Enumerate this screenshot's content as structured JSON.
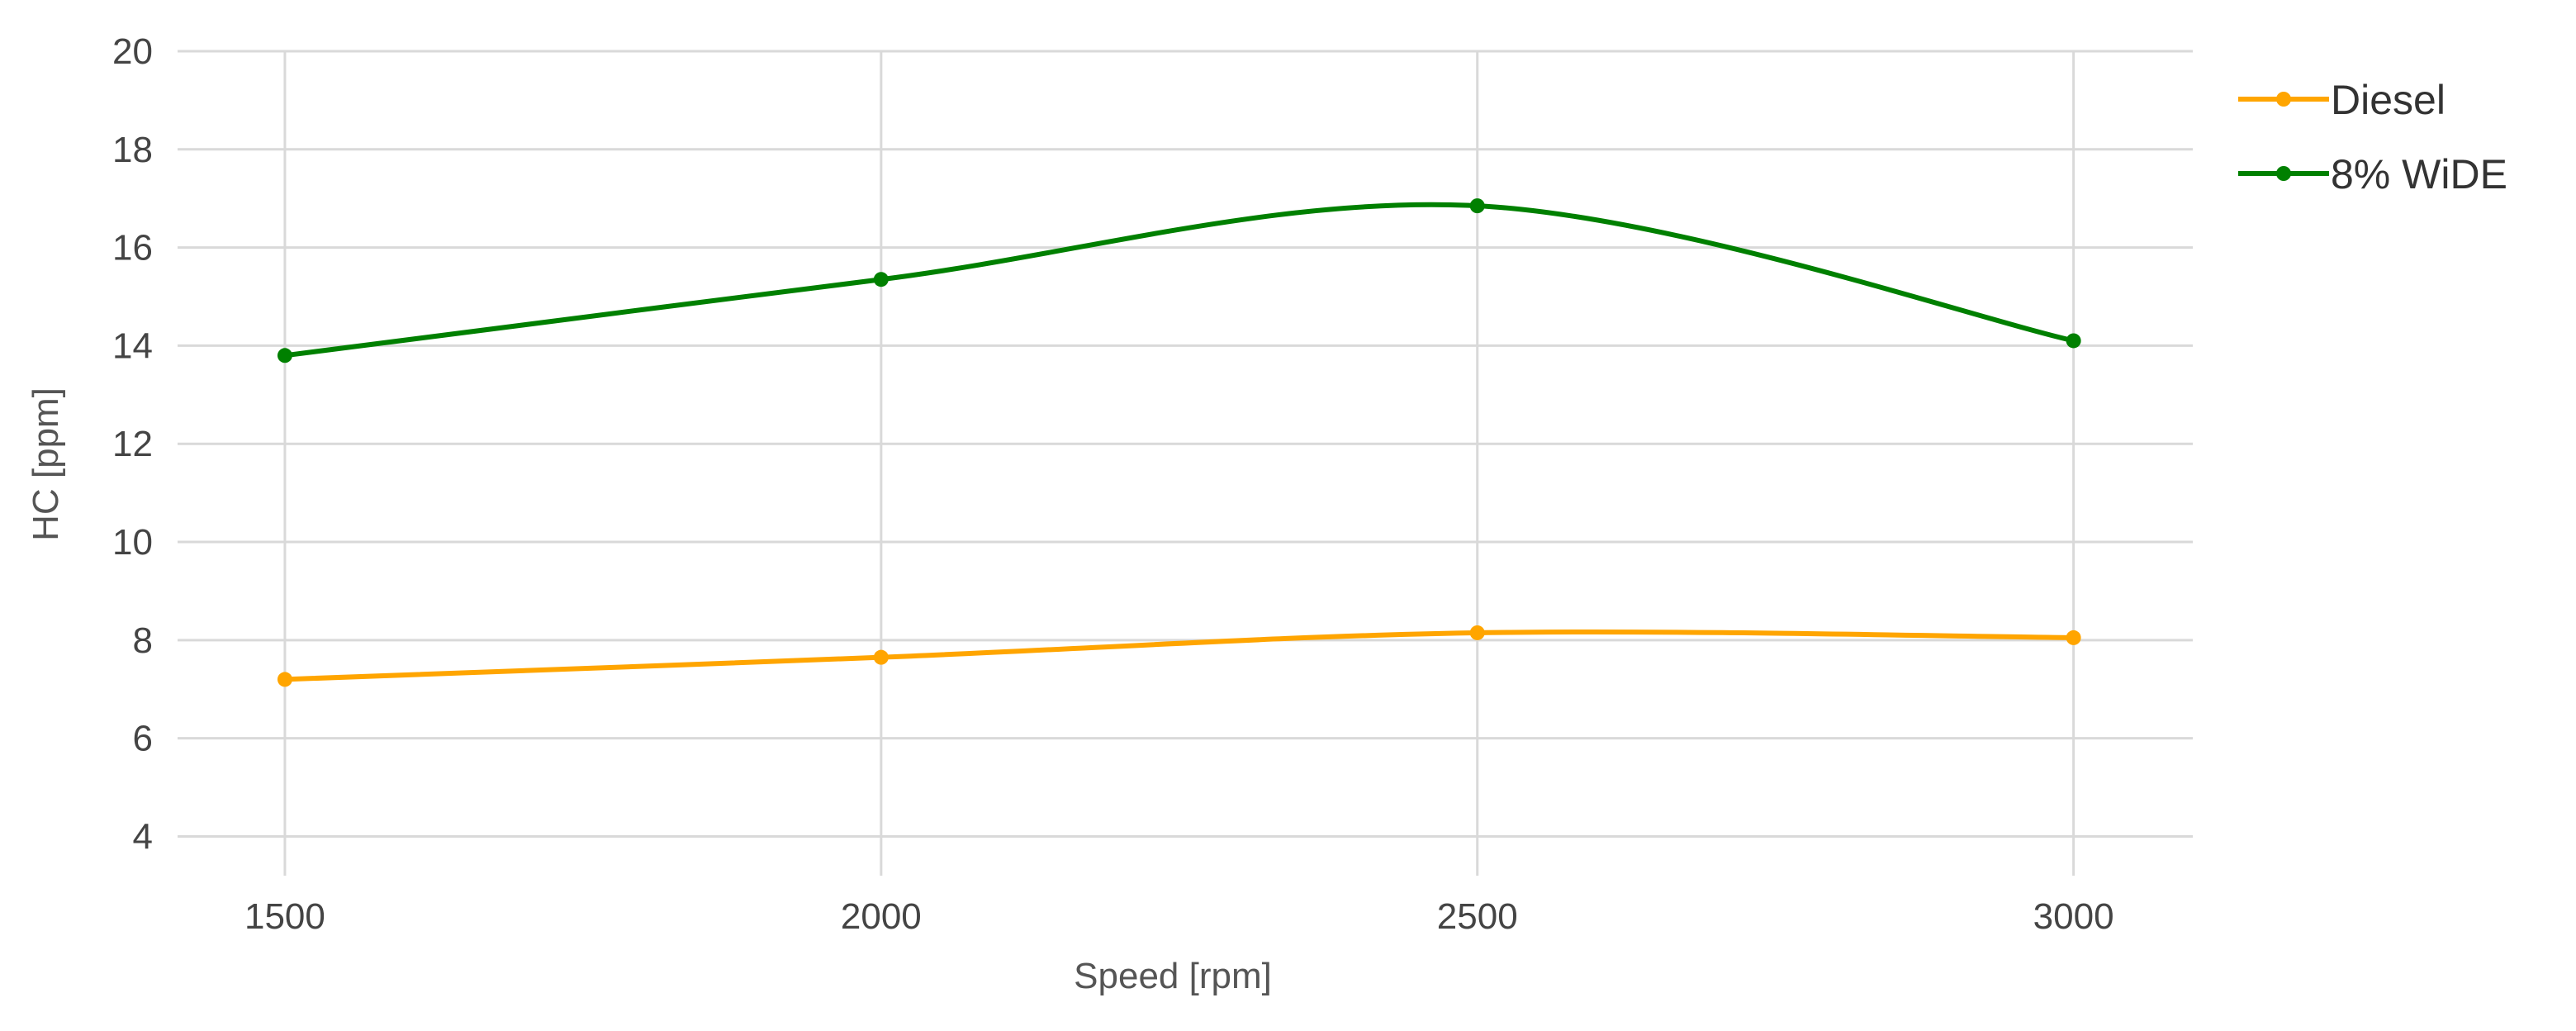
{
  "chart_data": {
    "type": "line",
    "x": [
      1500,
      2000,
      2500,
      3000
    ],
    "series": [
      {
        "name": "Diesel",
        "values": [
          7.2,
          7.65,
          8.15,
          8.05
        ],
        "color": "#ffa500"
      },
      {
        "name": "8% WiDE",
        "values": [
          13.8,
          15.35,
          16.85,
          14.1
        ],
        "color": "#008000"
      }
    ],
    "xlabel": "Speed [rpm]",
    "ylabel": "HC [ppm]",
    "xlim": [
      1410,
      3100
    ],
    "ylim": [
      3.2,
      20
    ],
    "xticks": [
      1500,
      2000,
      2500,
      3000
    ],
    "yticks": [
      4,
      6,
      8,
      10,
      12,
      14,
      16,
      18,
      20
    ],
    "grid": true,
    "legend_position": "top-right",
    "smoothed": true
  }
}
